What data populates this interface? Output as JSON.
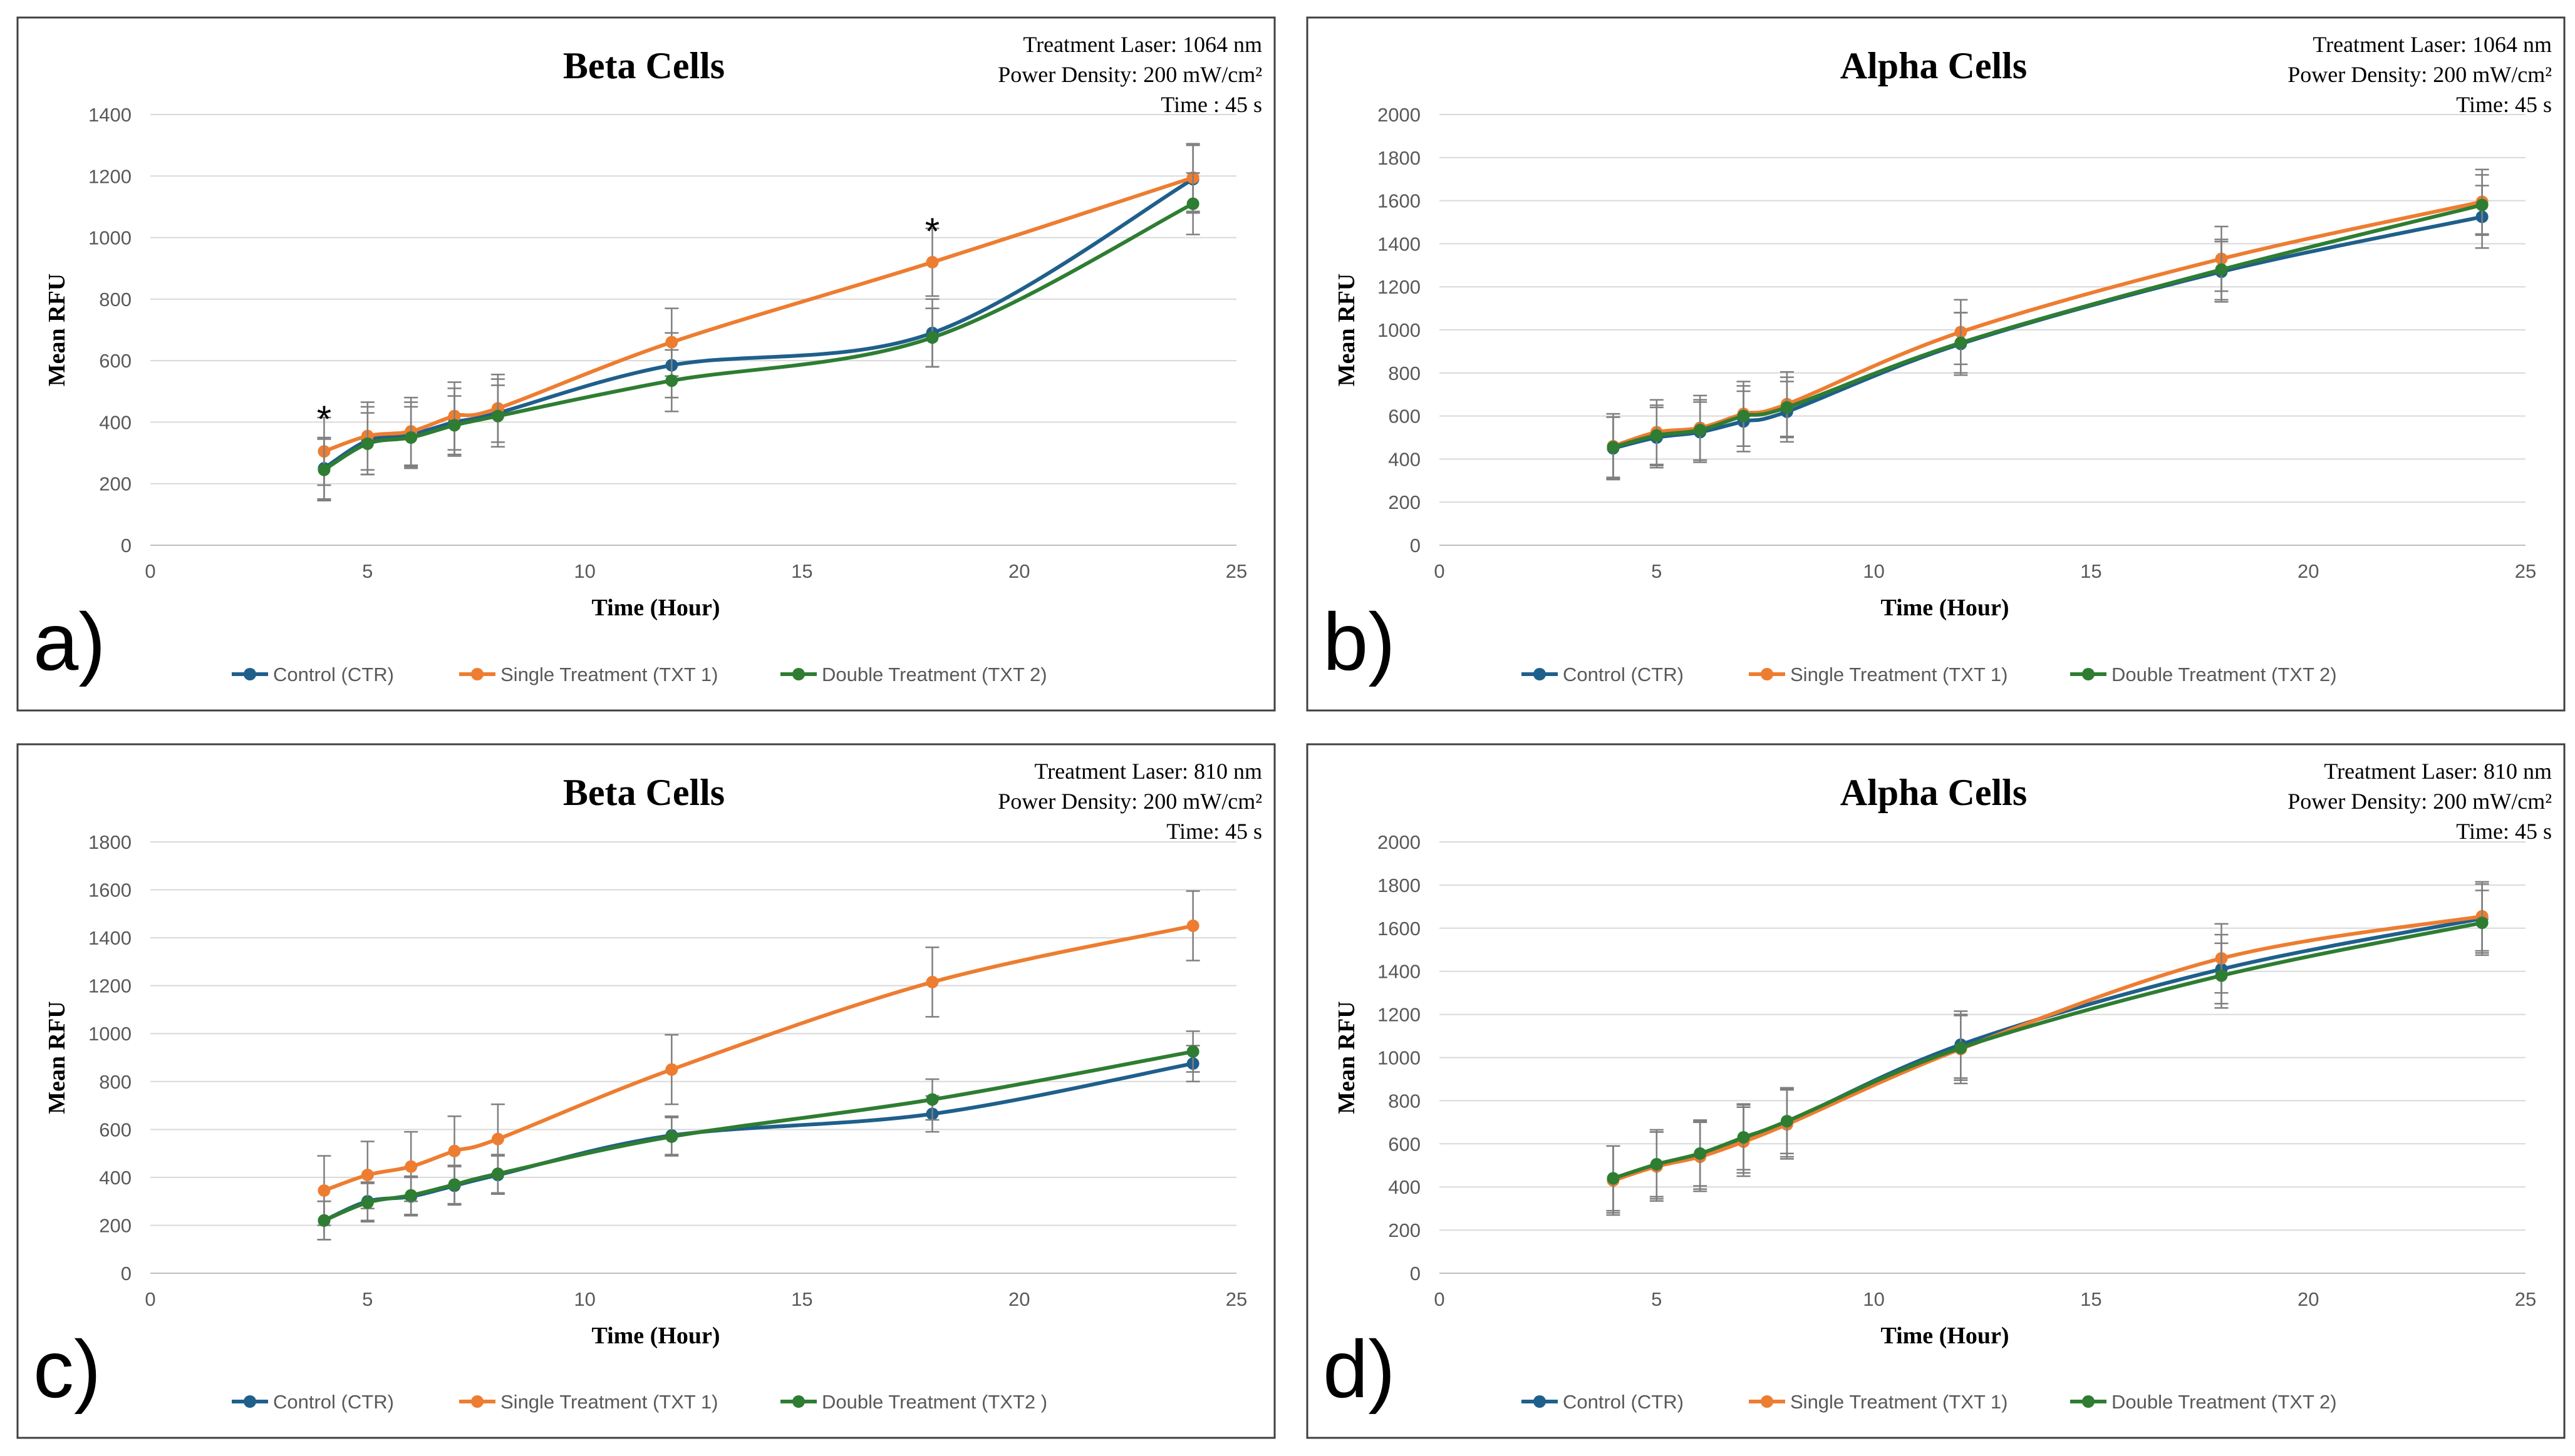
{
  "colors": {
    "control": "#1f5f8b",
    "single": "#ed7d31",
    "double": "#2e7d32",
    "error_bar": "#7f7f7f",
    "grid": "#d9d9d9",
    "border": "#404040"
  },
  "chart_data": [
    {
      "type": "line",
      "panel_letter": "a)",
      "title": "Beta Cells",
      "info": [
        "Treatment  Laser: 1064 nm",
        "Power Density: 200 mW/cm²",
        "Time : 45 s"
      ],
      "xlabel": "Time (Hour)",
      "ylabel": "Mean RFU",
      "xlim": [
        0,
        25
      ],
      "ylim": [
        0,
        1400
      ],
      "xticks": [
        "0",
        "5",
        "10",
        "15",
        "20",
        "25"
      ],
      "yticks": [
        "0",
        "200",
        "400",
        "600",
        "800",
        "1000",
        "1200",
        "1400"
      ],
      "x": [
        4,
        5,
        6,
        7,
        8,
        12,
        18,
        24
      ],
      "series": [
        {
          "name": "Control (CTR)",
          "values": [
            250,
            340,
            360,
            400,
            430,
            585,
            690,
            1190
          ],
          "errors": [
            100,
            110,
            105,
            110,
            110,
            105,
            110,
            110
          ]
        },
        {
          "name": "Single Treatment (TXT 1)",
          "values": [
            305,
            355,
            370,
            420,
            445,
            660,
            920,
            1195
          ],
          "errors": [
            110,
            110,
            110,
            110,
            110,
            110,
            110,
            110
          ]
        },
        {
          "name": "Double Treatment (TXT 2)",
          "values": [
            245,
            330,
            350,
            390,
            420,
            535,
            675,
            1110
          ],
          "errors": [
            100,
            100,
            100,
            95,
            100,
            100,
            95,
            100
          ]
        }
      ],
      "annotations": [
        {
          "text": "*",
          "x": 4,
          "y": 450
        },
        {
          "text": "*",
          "x": 18,
          "y": 1060
        }
      ]
    },
    {
      "type": "line",
      "panel_letter": "b)",
      "title": "Alpha Cells",
      "info": [
        "Treatment  Laser: 1064 nm",
        "Power Density: 200 mW/cm²",
        "Time: 45 s"
      ],
      "xlabel": "Time (Hour)",
      "ylabel": "Mean RFU",
      "xlim": [
        0,
        25
      ],
      "ylim": [
        0,
        2000
      ],
      "xticks": [
        "0",
        "5",
        "10",
        "15",
        "20",
        "25"
      ],
      "yticks": [
        "0",
        "200",
        "400",
        "600",
        "800",
        "1000",
        "1200",
        "1400",
        "1600",
        "1800",
        "2000"
      ],
      "x": [
        4,
        5,
        6,
        7,
        8,
        12,
        18,
        24
      ],
      "series": [
        {
          "name": "Control (CTR)",
          "values": [
            450,
            500,
            525,
            575,
            620,
            935,
            1270,
            1525
          ],
          "errors": [
            145,
            140,
            140,
            140,
            140,
            145,
            140,
            145
          ]
        },
        {
          "name": "Single Treatment (TXT 1)",
          "values": [
            460,
            525,
            545,
            610,
            655,
            990,
            1330,
            1595
          ],
          "errors": [
            150,
            150,
            150,
            150,
            150,
            150,
            150,
            150
          ]
        },
        {
          "name": "Double Treatment (TXT 2)",
          "values": [
            455,
            510,
            535,
            600,
            640,
            940,
            1280,
            1580
          ],
          "errors": [
            140,
            140,
            140,
            140,
            140,
            140,
            140,
            140
          ]
        }
      ],
      "annotations": []
    },
    {
      "type": "line",
      "panel_letter": "c)",
      "title": "Beta Cells",
      "info": [
        "Treatment  Laser: 810 nm",
        "Power Density: 200 mW/cm²",
        "Time: 45 s"
      ],
      "xlabel": "Time (Hour)",
      "ylabel": "Mean RFU",
      "xlim": [
        0,
        25
      ],
      "ylim": [
        0,
        1800
      ],
      "xticks": [
        "0",
        "5",
        "10",
        "15",
        "20",
        "25"
      ],
      "yticks": [
        "0",
        "200",
        "400",
        "600",
        "800",
        "1000",
        "1200",
        "1400",
        "1600",
        "1800"
      ],
      "x": [
        4,
        5,
        6,
        7,
        8,
        12,
        18,
        24
      ],
      "series": [
        {
          "name": "Control (CTR)",
          "values": [
            220,
            300,
            320,
            365,
            410,
            575,
            665,
            875
          ],
          "errors": [
            80,
            80,
            80,
            80,
            80,
            80,
            75,
            75
          ]
        },
        {
          "name": "Single Treatment (TXT 1)",
          "values": [
            345,
            410,
            445,
            510,
            560,
            850,
            1215,
            1450
          ],
          "errors": [
            145,
            140,
            145,
            145,
            145,
            145,
            145,
            145
          ]
        },
        {
          "name": "Double Treatment (TXT2 )",
          "values": [
            220,
            295,
            325,
            370,
            415,
            570,
            725,
            925
          ],
          "errors": [
            80,
            80,
            80,
            80,
            80,
            80,
            85,
            85
          ]
        }
      ],
      "annotations": []
    },
    {
      "type": "line",
      "panel_letter": "d)",
      "title": "Alpha Cells",
      "info": [
        "Treatment  Laser: 810 nm",
        "Power Density: 200 mW/cm²",
        "Time: 45 s"
      ],
      "xlabel": "Time (Hour)",
      "ylabel": "Mean RFU",
      "xlim": [
        0,
        25
      ],
      "ylim": [
        0,
        2000
      ],
      "xticks": [
        "0",
        "5",
        "10",
        "15",
        "20",
        "25"
      ],
      "yticks": [
        "0",
        "200",
        "400",
        "600",
        "800",
        "1000",
        "1200",
        "1400",
        "1600",
        "1800",
        "2000"
      ],
      "x": [
        4,
        5,
        6,
        7,
        8,
        12,
        18,
        24
      ],
      "series": [
        {
          "name": "Control (CTR)",
          "values": [
            435,
            505,
            550,
            625,
            700,
            1060,
            1410,
            1645
          ],
          "errors": [
            155,
            160,
            160,
            160,
            160,
            155,
            160,
            160
          ]
        },
        {
          "name": "Single Treatment (TXT 1)",
          "values": [
            430,
            495,
            540,
            610,
            690,
            1040,
            1460,
            1655
          ],
          "errors": [
            160,
            160,
            160,
            160,
            160,
            160,
            160,
            160
          ]
        },
        {
          "name": "Double Treatment (TXT 2)",
          "values": [
            440,
            505,
            555,
            630,
            705,
            1045,
            1380,
            1625
          ],
          "errors": [
            150,
            150,
            150,
            150,
            150,
            150,
            150,
            150
          ]
        }
      ],
      "annotations": []
    }
  ]
}
